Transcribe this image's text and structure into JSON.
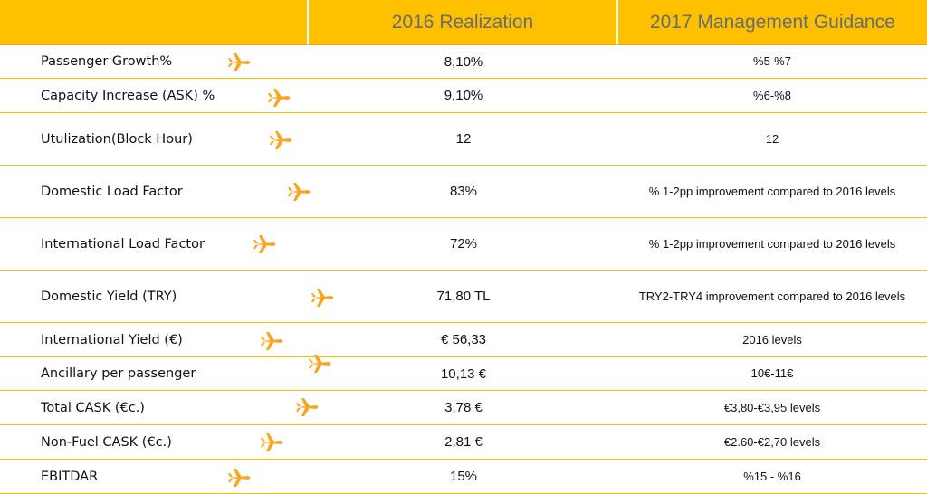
{
  "header": {
    "col1": "",
    "col2": "2016 Realization",
    "col3": "2017 Management Guidance"
  },
  "icons": {
    "row_marker": "orange-airplane-icon",
    "accent_color": "#ffc000",
    "plane_color": "#f5a623"
  },
  "rows": [
    {
      "label": "Passenger Growth%",
      "value": "8,10%",
      "guidance": "%5-%7"
    },
    {
      "label": "Capacity Increase (ASK) %",
      "value": "9,10%",
      "guidance": "%6-%8"
    },
    {
      "label": "Utulization(Block Hour)",
      "value": "12",
      "guidance": "12"
    },
    {
      "label": "Domestic Load Factor",
      "value": "83%",
      "guidance": "% 1-2pp improvement compared to 2016 levels"
    },
    {
      "label": "International Load Factor",
      "value": "72%",
      "guidance": "% 1-2pp  improvement compared to 2016 levels"
    },
    {
      "label": "Domestic Yield (TRY)",
      "value": "71,80 TL",
      "guidance": "TRY2-TRY4  improvement compared to 2016 levels"
    },
    {
      "label": "International Yield (€)",
      "value": "€ 56,33",
      "guidance": "2016 levels"
    },
    {
      "label": "Ancillary per passenger",
      "value": "10,13 €",
      "guidance": "10€-11€"
    },
    {
      "label": "Total CASK (€c.)",
      "value": "3,78 €",
      "guidance": "€3,80-€3,95 levels"
    },
    {
      "label": "Non-Fuel CASK (€c.)",
      "value": "2,81 €",
      "guidance": "€2.60-€2,70 levels"
    },
    {
      "label": "EBITDAR",
      "value": "15%",
      "guidance": "%15 - %16"
    }
  ]
}
